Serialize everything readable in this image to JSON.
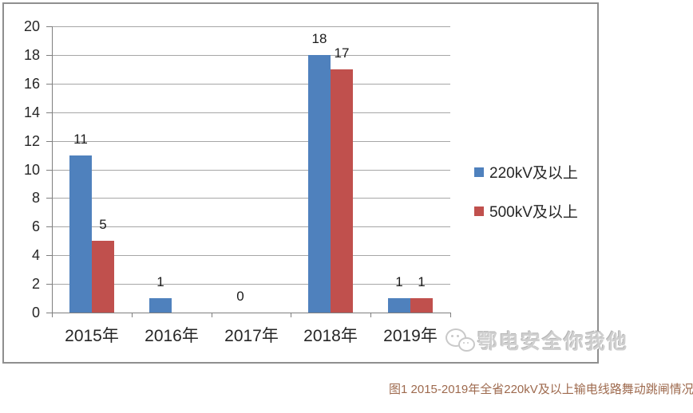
{
  "figure": {
    "caption": "图1  2015-2019年全省220kV及以上输电线路舞动跳闸情况",
    "watermark_text": "鄂电安全你我他"
  },
  "colors": {
    "series1": "#4f81bd",
    "series2": "#c0504d",
    "gridline": "#a6a6a6",
    "axis": "#7f7f7f",
    "caption": "#9e6a4e"
  },
  "chart_data": {
    "type": "bar",
    "categories": [
      "2015年",
      "2016年",
      "2017年",
      "2018年",
      "2019年"
    ],
    "series": [
      {
        "name": "220kV及以上",
        "color_key": "series1",
        "values": [
          11,
          1,
          0,
          18,
          1
        ],
        "labels": [
          "11",
          "1",
          "0",
          "18",
          "1"
        ]
      },
      {
        "name": "500kV及以上",
        "color_key": "series2",
        "values": [
          5,
          null,
          null,
          17,
          1
        ],
        "labels": [
          "5",
          "",
          "",
          "17",
          "1"
        ]
      }
    ],
    "ylabel": "",
    "xlabel": "",
    "ylim": [
      0,
      20
    ],
    "ytick_step": 2,
    "yticks": [
      0,
      2,
      4,
      6,
      8,
      10,
      12,
      14,
      16,
      18,
      20
    ],
    "grid": true,
    "legend_position": "right",
    "data_labels": "outside-end"
  }
}
